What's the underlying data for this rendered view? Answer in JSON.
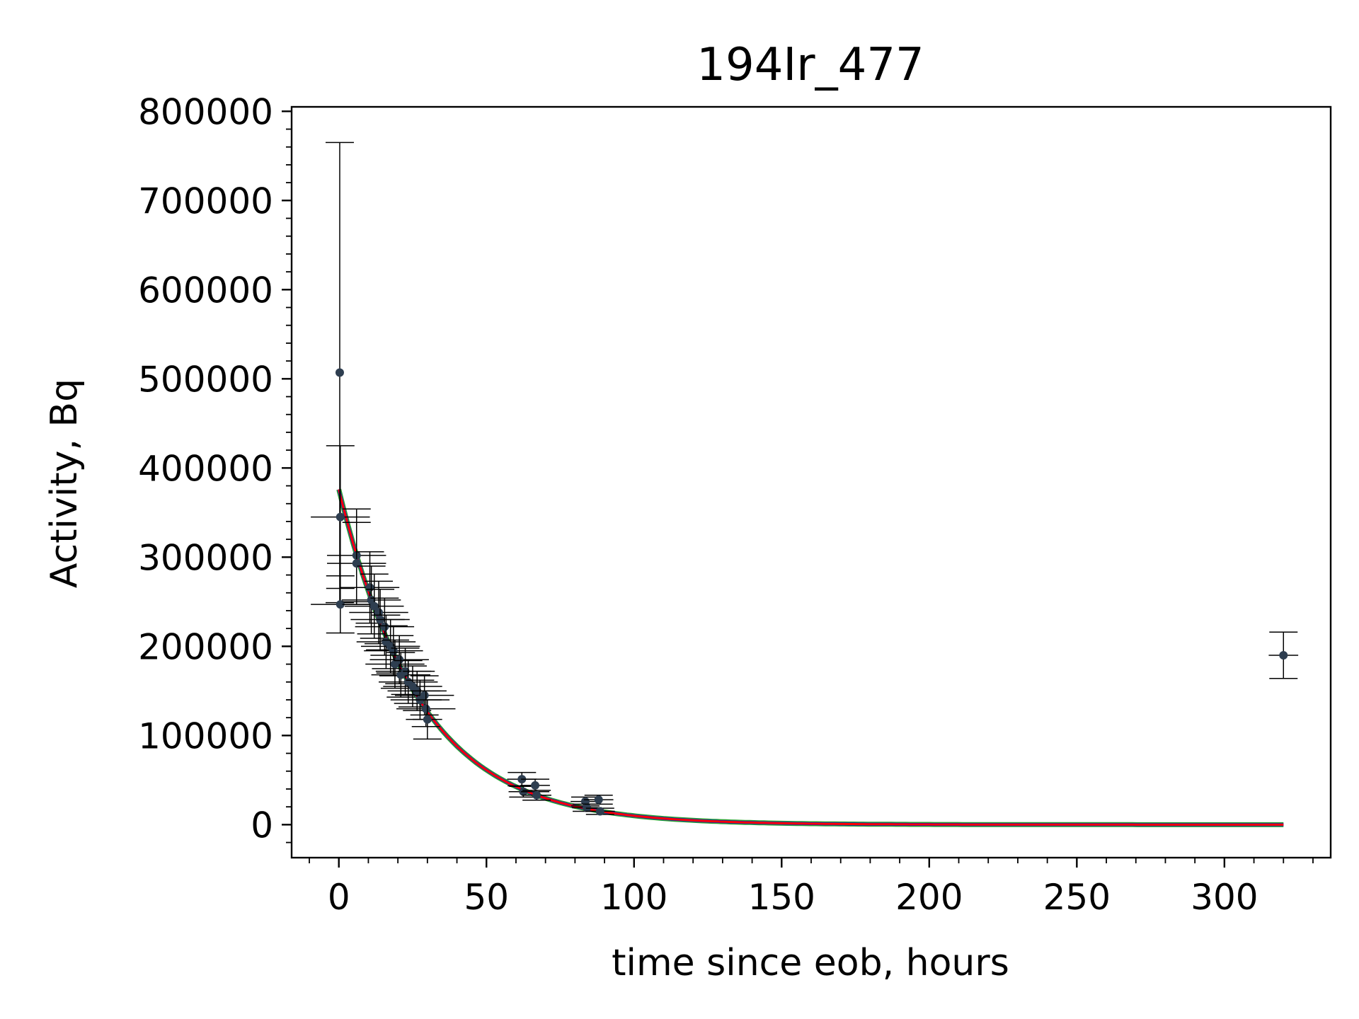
{
  "chart_data": {
    "type": "scatter",
    "title": "194Ir_477",
    "xlabel": "time since eob, hours",
    "ylabel": "Activity, Bq",
    "xlim": [
      -16,
      336
    ],
    "ylim": [
      -37000,
      805000
    ],
    "x_ticks": [
      0,
      50,
      100,
      150,
      200,
      250,
      300
    ],
    "x_tick_labels": [
      "0",
      "50",
      "100",
      "150",
      "200",
      "250",
      "300"
    ],
    "y_ticks": [
      0,
      100000,
      200000,
      300000,
      400000,
      500000,
      600000,
      700000,
      800000
    ],
    "y_tick_labels": [
      "0",
      "100000",
      "200000",
      "300000",
      "400000",
      "500000",
      "600000",
      "700000",
      "800000"
    ],
    "x_minor_step": 10,
    "y_minor_step": 20000,
    "grid": false,
    "legend": null,
    "series": [
      {
        "kind": "errorbar",
        "marker_color": "#2e3e50",
        "errorbar_color": "#000000",
        "points": [
          {
            "x": 0.3,
            "y": 507000,
            "yerr": 258000,
            "xerr": 0
          },
          {
            "x": 0.5,
            "y": 345000,
            "yerr": 80000,
            "xerr": 10
          },
          {
            "x": 0.5,
            "y": 247000,
            "yerr": 32000,
            "xerr": 10
          },
          {
            "x": 6,
            "y": 302000,
            "yerr": 52000,
            "xerr": 10
          },
          {
            "x": 6,
            "y": 293000,
            "yerr": 46000,
            "xerr": 10
          },
          {
            "x": 10.5,
            "y": 266000,
            "yerr": 40000,
            "xerr": 10
          },
          {
            "x": 11,
            "y": 252000,
            "yerr": 38000,
            "xerr": 10
          },
          {
            "x": 12,
            "y": 245000,
            "yerr": 36000,
            "xerr": 10
          },
          {
            "x": 13.5,
            "y": 238000,
            "yerr": 35000,
            "xerr": 10
          },
          {
            "x": 14,
            "y": 230000,
            "yerr": 34000,
            "xerr": 10
          },
          {
            "x": 15.5,
            "y": 222000,
            "yerr": 32000,
            "xerr": 10
          },
          {
            "x": 16,
            "y": 205000,
            "yerr": 30000,
            "xerr": 10
          },
          {
            "x": 17.5,
            "y": 200000,
            "yerr": 30000,
            "xerr": 10
          },
          {
            "x": 18.5,
            "y": 195000,
            "yerr": 28000,
            "xerr": 10
          },
          {
            "x": 19,
            "y": 180000,
            "yerr": 27000,
            "xerr": 10
          },
          {
            "x": 20.5,
            "y": 185000,
            "yerr": 27000,
            "xerr": 10
          },
          {
            "x": 21,
            "y": 168000,
            "yerr": 25000,
            "xerr": 10
          },
          {
            "x": 22.5,
            "y": 172000,
            "yerr": 26000,
            "xerr": 10
          },
          {
            "x": 23.5,
            "y": 160000,
            "yerr": 24000,
            "xerr": 10
          },
          {
            "x": 25,
            "y": 155000,
            "yerr": 23000,
            "xerr": 10
          },
          {
            "x": 26.5,
            "y": 150000,
            "yerr": 22000,
            "xerr": 10
          },
          {
            "x": 27.5,
            "y": 140000,
            "yerr": 22000,
            "xerr": 10
          },
          {
            "x": 29,
            "y": 145000,
            "yerr": 22000,
            "xerr": 10
          },
          {
            "x": 29.5,
            "y": 130000,
            "yerr": 20000,
            "xerr": 10
          },
          {
            "x": 30,
            "y": 118000,
            "yerr": 22000,
            "xerr": 5
          },
          {
            "x": 62,
            "y": 51000,
            "yerr": 7500,
            "xerr": 5
          },
          {
            "x": 62.5,
            "y": 37000,
            "yerr": 6000,
            "xerr": 5
          },
          {
            "x": 66.5,
            "y": 44000,
            "yerr": 7000,
            "xerr": 5
          },
          {
            "x": 67,
            "y": 33000,
            "yerr": 5500,
            "xerr": 5
          },
          {
            "x": 83.5,
            "y": 26000,
            "yerr": 5000,
            "xerr": 5
          },
          {
            "x": 84,
            "y": 19000,
            "yerr": 4000,
            "xerr": 5
          },
          {
            "x": 88,
            "y": 28000,
            "yerr": 5000,
            "xerr": 5
          },
          {
            "x": 88.5,
            "y": 15000,
            "yerr": 3500,
            "xerr": 5
          },
          {
            "x": 320,
            "y": 190000,
            "yerr": 26000,
            "xerr": 5
          }
        ]
      },
      {
        "kind": "fit",
        "colors": [
          "#2ca02c",
          "#0000ff",
          "#ff0000"
        ],
        "A0": 376000,
        "decay_constant_per_hour": 0.0363,
        "x_start": 0,
        "x_end": 320
      }
    ]
  }
}
